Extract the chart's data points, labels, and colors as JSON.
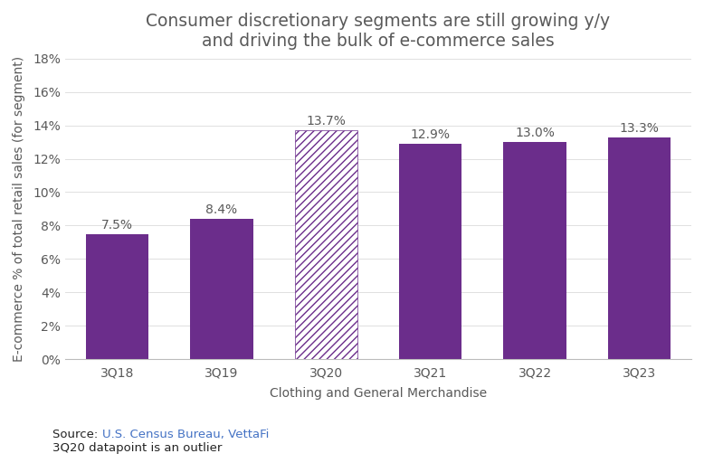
{
  "title_line1": "Consumer discretionary segments are still growing y/y",
  "title_line2": "and driving the bulk of e-commerce sales",
  "categories": [
    "3Q18",
    "3Q19",
    "3Q20",
    "3Q21",
    "3Q22",
    "3Q23"
  ],
  "values": [
    7.5,
    8.4,
    13.7,
    12.9,
    13.0,
    13.3
  ],
  "labels": [
    "7.5%",
    "8.4%",
    "13.7%",
    "12.9%",
    "13.0%",
    "13.3%"
  ],
  "bar_color": "#6B2D8B",
  "hatch_bar_index": 2,
  "hatch_facecolor": "#ffffff",
  "hatch_edgecolor": "#6B2D8B",
  "hatch_pattern": "////",
  "xlabel": "Clothing and General Merchandise",
  "ylabel": "E-commerce % of total retail sales (for segment)",
  "ylim": [
    0,
    18
  ],
  "yticks": [
    0,
    2,
    4,
    6,
    8,
    10,
    12,
    14,
    16,
    18
  ],
  "ytick_labels": [
    "0%",
    "2%",
    "4%",
    "6%",
    "8%",
    "10%",
    "12%",
    "14%",
    "16%",
    "18%"
  ],
  "source_prefix": "Source: ",
  "source_highlight": "U.S. Census Bureau, VettaFi",
  "source_line2": "3Q20 datapoint is an outlier",
  "source_color_main": "#222222",
  "source_highlight_color": "#4472C4",
  "title_color": "#595959",
  "axis_label_color": "#595959",
  "tick_label_color": "#595959",
  "data_label_color": "#595959",
  "background_color": "#ffffff",
  "title_fontsize": 13.5,
  "axis_label_fontsize": 10,
  "tick_fontsize": 10,
  "data_label_fontsize": 10,
  "source_fontsize": 9.5
}
